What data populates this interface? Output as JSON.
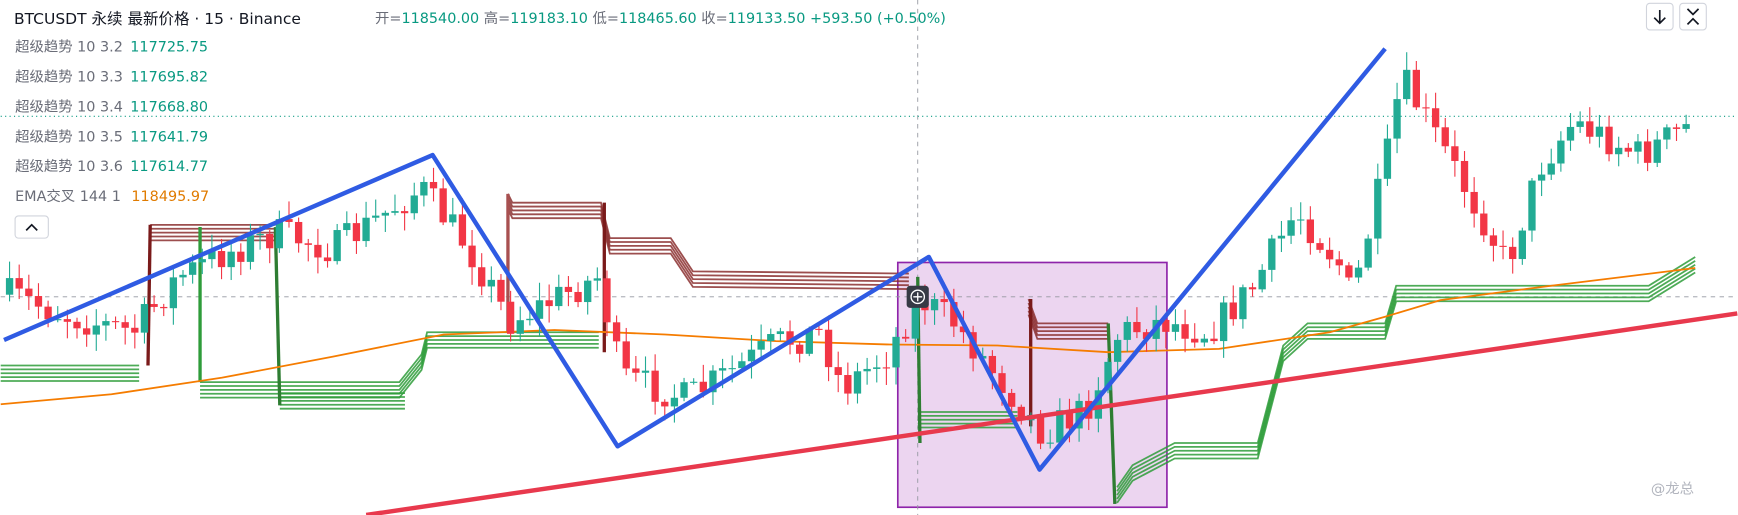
{
  "header": {
    "symbol": "BTCUSDT",
    "contract": "永续",
    "source": "最新价格 · 15 · Binance",
    "ohlc": [
      {
        "label": "开=",
        "value": "118540.00"
      },
      {
        "label": "高=",
        "value": "119183.10"
      },
      {
        "label": "低=",
        "value": "118465.60"
      },
      {
        "label": "收=",
        "value": "119133.50"
      }
    ],
    "change": "+593.50 (+0.50%)"
  },
  "indicators": [
    {
      "name": "超级趋势 10 3.2",
      "value": "117725.75"
    },
    {
      "name": "超级趋势 10 3.3",
      "value": "117695.82"
    },
    {
      "name": "超级趋势 10 3.4",
      "value": "117668.80"
    },
    {
      "name": "超级趋势 10 3.5",
      "value": "117641.79"
    },
    {
      "name": "超级趋势 10 3.6",
      "value": "117614.77"
    },
    {
      "name": "EMA交叉 144 1",
      "value": "118495.97"
    }
  ],
  "watermark": "@龙总"
}
